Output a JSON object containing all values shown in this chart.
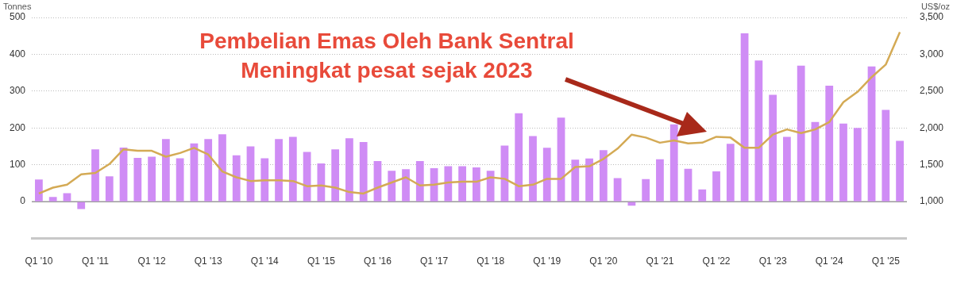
{
  "chart_data": {
    "type": "bar",
    "ylabel": "Tonnes",
    "y2label": "US$/oz",
    "annotations": [
      "Pembelian Emas Oleh Bank Sentral",
      "Meningkat pesat sejak 2023"
    ],
    "categories": [
      "Q1 '10",
      null,
      null,
      null,
      "Q1 '11",
      null,
      null,
      null,
      "Q1 '12",
      null,
      null,
      null,
      "Q1 '13",
      null,
      null,
      null,
      "Q1 '14",
      null,
      null,
      null,
      "Q1 '15",
      null,
      null,
      null,
      "Q1 '16",
      null,
      null,
      null,
      "Q1 '17",
      null,
      null,
      null,
      "Q1 '18",
      null,
      null,
      null,
      "Q1 '19",
      null,
      null,
      null,
      "Q1 '20",
      null,
      null,
      null,
      "Q1 '21",
      null,
      null,
      null,
      "Q1 '22",
      null,
      null,
      null,
      "Q1 '23",
      null,
      null,
      null,
      "Q1 '24",
      null,
      null,
      null,
      "Q1 '25",
      null
    ],
    "series": [
      {
        "color": "#cf8cf5",
        "values": [
          60,
          13,
          23,
          -20,
          142,
          69,
          147,
          119,
          122,
          170,
          118,
          158,
          170,
          183,
          126,
          150,
          118,
          170,
          176,
          135,
          104,
          142,
          172,
          162,
          110,
          84,
          88,
          110,
          91,
          96,
          96,
          93,
          84,
          152,
          240,
          178,
          146,
          228,
          114,
          117,
          140,
          64,
          -11,
          61,
          115,
          210,
          89,
          33,
          82,
          157,
          457,
          383,
          290,
          176,
          369,
          216,
          315,
          212,
          200,
          367,
          249,
          165
        ]
      },
      {
        "type": "line",
        "axis": "y2",
        "color": "#d4aa55",
        "values": [
          1110,
          1190,
          1230,
          1370,
          1390,
          1510,
          1710,
          1690,
          1690,
          1610,
          1660,
          1730,
          1640,
          1410,
          1330,
          1280,
          1290,
          1290,
          1280,
          1210,
          1220,
          1190,
          1130,
          1110,
          1190,
          1260,
          1330,
          1220,
          1230,
          1260,
          1270,
          1270,
          1330,
          1310,
          1210,
          1230,
          1310,
          1310,
          1470,
          1480,
          1580,
          1720,
          1910,
          1870,
          1800,
          1830,
          1790,
          1800,
          1880,
          1870,
          1730,
          1730,
          1910,
          1980,
          1930,
          1980,
          2080,
          2350,
          2490,
          2690,
          2860,
          3300
        ]
      }
    ],
    "ylim": [
      -100,
      500
    ],
    "yticks": [
      0,
      100,
      200,
      300,
      400,
      500
    ],
    "y2lim": [
      500,
      3500
    ],
    "y2ticks": [
      {
        "value": 1000,
        "label": "1,000"
      },
      {
        "value": 1500,
        "label": "1,500"
      },
      {
        "value": 2000,
        "label": "2,000"
      },
      {
        "value": 2500,
        "label": "2,500"
      },
      {
        "value": 3000,
        "label": "3,000"
      },
      {
        "value": 3500,
        "label": "3,500"
      }
    ],
    "ref_lines": [
      {
        "axis": "y",
        "value": 0,
        "color": "#999999"
      }
    ],
    "grid": "y",
    "legend": false,
    "marker": "none",
    "line_style": "solid"
  }
}
